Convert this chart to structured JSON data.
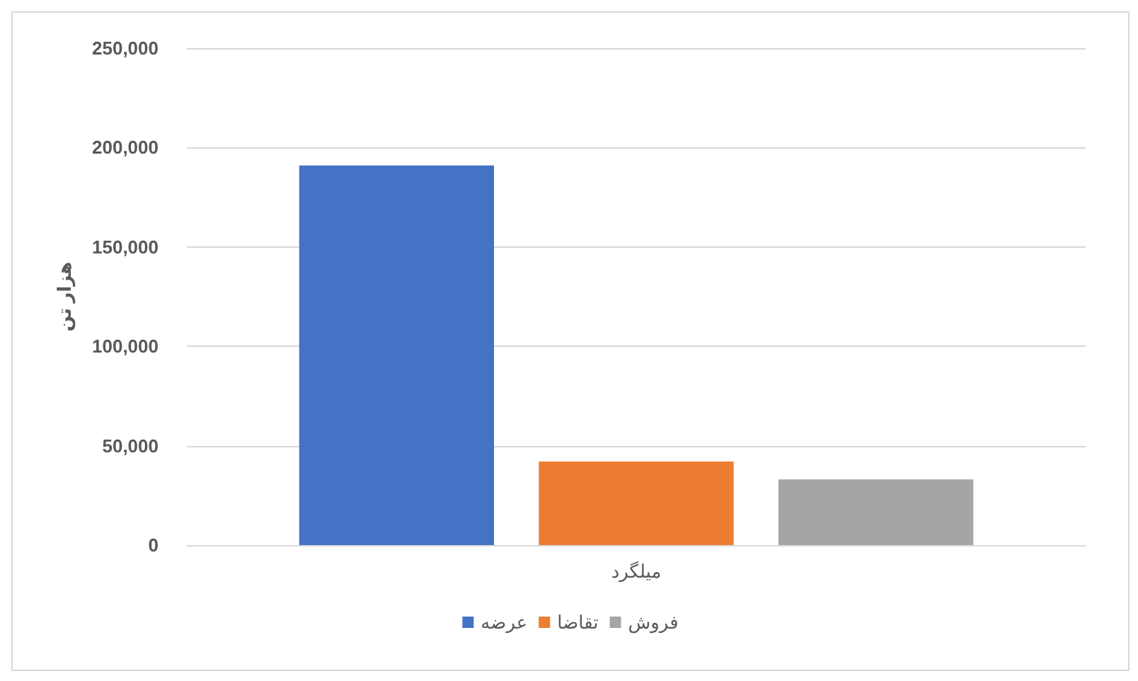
{
  "chart_data": {
    "type": "bar",
    "ylabel": "هزار تن",
    "categories": [
      "میلگرد"
    ],
    "series": [
      {
        "name": "عرضه",
        "color": "#4472c4",
        "values": [
          191000
        ]
      },
      {
        "name": "تقاضا",
        "color": "#ed7d31",
        "values": [
          42000
        ]
      },
      {
        "name": "فروش",
        "color": "#a5a5a5",
        "values": [
          33000
        ]
      }
    ],
    "ylim": [
      0,
      250000
    ],
    "yticks": [
      0,
      {
        "value": 50000,
        "label": "50,000"
      },
      {
        "value": 100000,
        "label": "100,000"
      },
      {
        "value": 150000,
        "label": "150,000"
      },
      {
        "value": 200000,
        "label": "200,000"
      },
      {
        "value": 250000,
        "label": "250,000"
      }
    ],
    "grid": "y",
    "legend": "bottom"
  }
}
